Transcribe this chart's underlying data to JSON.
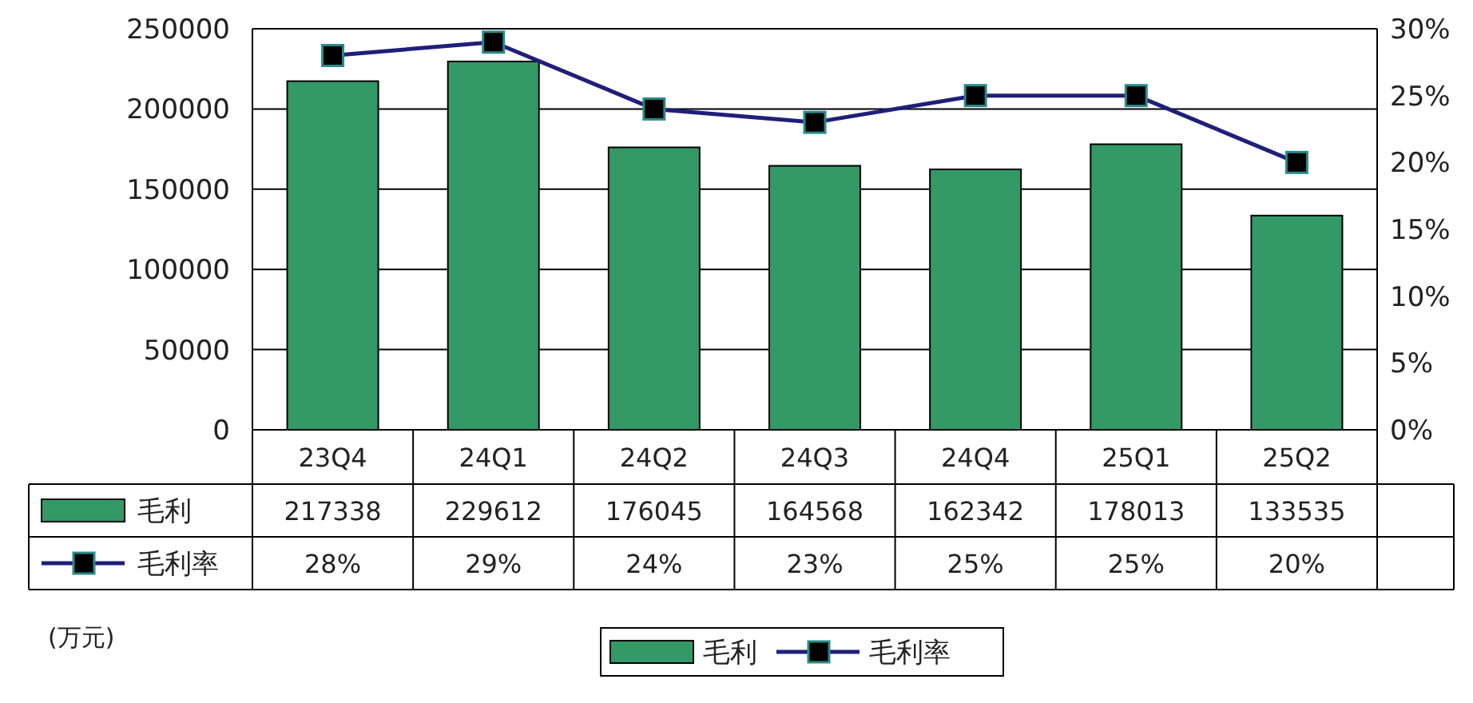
{
  "chart_data": {
    "type": "bar",
    "categories": [
      "23Q4",
      "24Q1",
      "24Q2",
      "24Q3",
      "24Q4",
      "25Q1",
      "25Q2"
    ],
    "series": [
      {
        "name": "毛利",
        "color": "#339966",
        "values": [
          217338,
          229612,
          176045,
          164568,
          162342,
          178013,
          133535
        ],
        "value_labels": [
          "217338",
          "229612",
          "176045",
          "164568",
          "162342",
          "178013",
          "133535"
        ]
      },
      {
        "name": "毛利率",
        "type": "line",
        "axis": "y2",
        "color": "#1f1f7a",
        "values": [
          28,
          29,
          24,
          23,
          25,
          25,
          20
        ],
        "value_labels": [
          "28%",
          "29%",
          "24%",
          "23%",
          "25%",
          "25%",
          "20%"
        ]
      }
    ],
    "ylim": [
      0,
      250000
    ],
    "yticks": [
      0,
      50000,
      100000,
      150000,
      200000,
      250000
    ],
    "y2lim": [
      0,
      30
    ],
    "y2ticks": [
      {
        "value": 0,
        "label": "0%"
      },
      {
        "value": 5,
        "label": "5%"
      },
      {
        "value": 10,
        "label": "10%"
      },
      {
        "value": 15,
        "label": "15%"
      },
      {
        "value": 20,
        "label": "20%"
      },
      {
        "value": 25,
        "label": "25%"
      },
      {
        "value": 30,
        "label": "30%"
      }
    ],
    "grid": "y",
    "legend": "bottom",
    "marker": "square",
    "line_style": "solid",
    "annotations": [
      "(万元)"
    ]
  }
}
